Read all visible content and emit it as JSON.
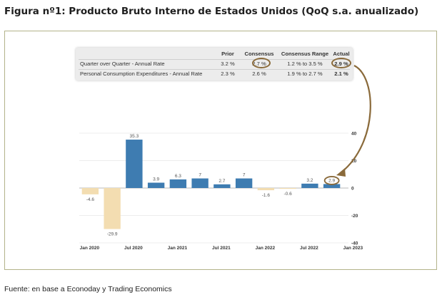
{
  "figure": {
    "title": "Figura nº1: Producto Bruto Interno de Estados Unidos (QoQ s.a. anualizado)",
    "source": "Fuente: en base a Econoday y Trading Economics"
  },
  "table": {
    "headers": [
      "Prior",
      "Consensus",
      "Consensus Range",
      "Actual"
    ],
    "rows": [
      {
        "label": "Quarter over Quarter - Annual Rate",
        "prior": "3.2 %",
        "consensus": "2.7 %",
        "range": "1.2 % to 3.5 %",
        "actual": "2.9 %"
      },
      {
        "label": "Personal Consumption Expenditures - Annual Rate",
        "prior": "2.3 %",
        "consensus": "2.6 %",
        "range": "1.9 % to 2.7 %",
        "actual": "2.1 %"
      }
    ]
  },
  "chart_data": {
    "type": "bar",
    "categories": [
      "Q1 2020",
      "Q2 2020",
      "Q3 2020",
      "Q4 2020",
      "Q1 2021",
      "Q2 2021",
      "Q3 2021",
      "Q4 2021",
      "Q1 2022",
      "Q2 2022",
      "Q3 2022",
      "Q4 2022"
    ],
    "values": [
      -4.6,
      -29.9,
      35.3,
      3.9,
      6.3,
      7,
      2.7,
      7,
      -1.6,
      -0.6,
      3.2,
      2.9
    ],
    "value_labels": [
      "-4.6",
      "-29.9",
      "35.3",
      "3.9",
      "6.3",
      "7",
      "2.7",
      "7",
      "-1.6",
      "-0.6",
      "3.2",
      "2.9"
    ],
    "x_tick_labels": [
      "Jan 2020",
      "Jul 2020",
      "Jan 2021",
      "Jul 2021",
      "Jan 2022",
      "Jul 2022",
      "Jan 2023"
    ],
    "y_ticks": [
      40,
      20,
      0,
      -20,
      -40
    ],
    "ylim": [
      -40,
      40
    ],
    "y_axis_position": "right",
    "grid": true,
    "colors": {
      "positive": "#3e7cb1",
      "negative": "#f3ddb1",
      "annotation": "#8a6a3a"
    },
    "highlighted_category": "Q4 2022"
  }
}
